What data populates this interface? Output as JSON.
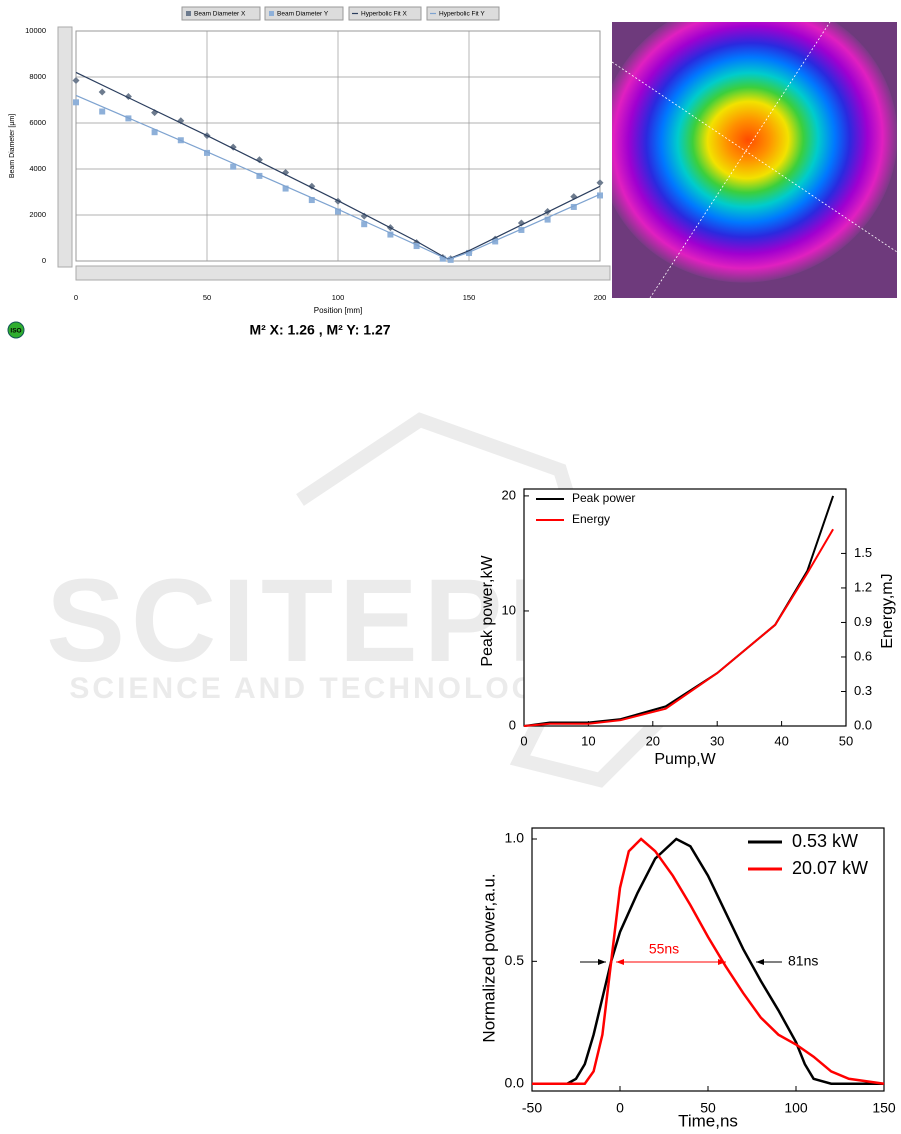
{
  "watermark": {
    "title": "SCITEPRESS",
    "subtitle": "SCIENCE AND TECHNOLOGY PUBLICATIONS"
  },
  "chart_data": [
    {
      "type": "line",
      "x_label": "Position [mm]",
      "y_label": "Beam Diameter [µm]",
      "annotation": "M² X: 1.26 , M² Y: 1.27",
      "badge": "ISO",
      "x": [
        0,
        10,
        20,
        30,
        40,
        50,
        60,
        70,
        80,
        90,
        100,
        110,
        120,
        130,
        140,
        143,
        150,
        160,
        170,
        180,
        190,
        200
      ],
      "series": [
        {
          "name": "Beam Diameter X",
          "color": "#6d7b8e",
          "mark": "diamond",
          "values": [
            7850,
            7350,
            7150,
            6450,
            6100,
            5450,
            4950,
            4400,
            3850,
            3250,
            2600,
            1950,
            1450,
            800,
            150,
            100,
            350,
            950,
            1650,
            2150,
            2800,
            3400
          ]
        },
        {
          "name": "Beam Diameter Y",
          "color": "#8eb0d9",
          "mark": "square",
          "values": [
            6900,
            6500,
            6200,
            5600,
            5250,
            4700,
            4100,
            3700,
            3150,
            2650,
            2150,
            1600,
            1150,
            650,
            100,
            50,
            350,
            850,
            1350,
            1800,
            2350,
            2850
          ]
        },
        {
          "name": "Hyperbolic Fit X",
          "color": "#2b3e5e",
          "mark": "line",
          "x": [
            0,
            50,
            100,
            130,
            142,
            150,
            200
          ],
          "values": [
            8200,
            5450,
            2620,
            850,
            80,
            450,
            3250
          ]
        },
        {
          "name": "Hyperbolic Fit Y",
          "color": "#7ea3d0",
          "mark": "line",
          "x": [
            0,
            50,
            100,
            130,
            142,
            150,
            200
          ],
          "values": [
            7200,
            4750,
            2250,
            700,
            60,
            380,
            2900
          ]
        }
      ],
      "xlim": [
        0,
        200
      ],
      "ylim": [
        0,
        10000
      ],
      "xticks": [
        0,
        50,
        100,
        150,
        200
      ],
      "yticks": [
        0,
        2000,
        4000,
        6000,
        8000,
        10000
      ],
      "grid": true,
      "legend": "top"
    },
    {
      "type": "line",
      "x_label": "Pump,W",
      "y_label": "Peak power,kW",
      "y2_label": "Energy,mJ",
      "x": [
        0,
        4,
        10,
        15,
        22,
        30,
        39,
        44,
        48
      ],
      "series": [
        {
          "name": "Peak power",
          "color": "#000000",
          "mark": "line",
          "values": [
            0,
            0.3,
            0.3,
            0.6,
            1.7,
            4.6,
            8.8,
            13.5,
            20
          ]
        },
        {
          "name": "Energy",
          "color": "#ff0000",
          "mark": "line",
          "axis": "y2",
          "values": [
            0,
            0.02,
            0.02,
            0.05,
            0.15,
            0.46,
            0.88,
            1.33,
            1.71
          ]
        }
      ],
      "xlim": [
        0,
        50
      ],
      "ylim": [
        0,
        20.6
      ],
      "y2lim": [
        0,
        2.06
      ],
      "xticks": [
        0,
        10,
        20,
        30,
        40,
        50
      ],
      "yticks": [
        0,
        10,
        20
      ],
      "y2ticks": [
        {
          "value": 0,
          "label": "0.0"
        },
        0.3,
        0.6,
        0.9,
        1.2,
        1.5
      ],
      "grid": false,
      "legend": "upper left"
    },
    {
      "type": "line",
      "x_label": "Time,ns",
      "y_label": "Normalized power,a.u.",
      "series": [
        {
          "name": "0.53 kW",
          "color": "#000000",
          "mark": "line",
          "x": [
            -50,
            -30,
            -25,
            -20,
            -15,
            -10,
            -5,
            0,
            10,
            20,
            32,
            40,
            50,
            60,
            70,
            80,
            90,
            100,
            105,
            110,
            120,
            150
          ],
          "values": [
            0,
            0,
            0.02,
            0.08,
            0.2,
            0.35,
            0.5,
            0.62,
            0.78,
            0.92,
            1.0,
            0.97,
            0.85,
            0.7,
            0.55,
            0.42,
            0.3,
            0.17,
            0.08,
            0.02,
            0,
            0
          ]
        },
        {
          "name": "20.07 kW",
          "color": "#ff0000",
          "mark": "line",
          "x": [
            -50,
            -20,
            -15,
            -10,
            -5,
            0,
            5,
            12,
            20,
            30,
            40,
            50,
            60,
            70,
            80,
            90,
            100,
            110,
            120,
            130,
            150
          ],
          "values": [
            0,
            0,
            0.05,
            0.2,
            0.5,
            0.8,
            0.95,
            1.0,
            0.95,
            0.85,
            0.73,
            0.6,
            0.48,
            0.37,
            0.27,
            0.2,
            0.16,
            0.11,
            0.05,
            0.02,
            0
          ]
        }
      ],
      "annotations": [
        {
          "text": "55ns",
          "color": "#ff0000"
        },
        {
          "text": "81ns",
          "color": "#000000"
        }
      ],
      "xlim": [
        -50,
        150
      ],
      "ylim": [
        -0.03,
        1.045
      ],
      "xticks": [
        -50,
        0,
        50,
        100,
        150
      ],
      "yticks": [
        {
          "value": 0,
          "label": "0.0"
        },
        0.5,
        {
          "value": 1,
          "label": "1.0"
        }
      ],
      "grid": false,
      "legend": "upper right"
    }
  ]
}
